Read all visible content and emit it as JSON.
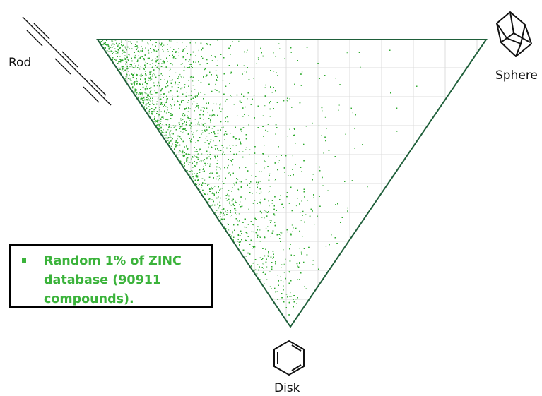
{
  "chart_data": {
    "type": "scatter",
    "plot_kind": "ternary principal-moments-of-inertia triangle",
    "vertices": [
      "Rod",
      "Sphere",
      "Disk"
    ],
    "series": [
      {
        "name": "Random 1% of ZINC database (90911 compounds).",
        "count": 90911,
        "color": "#2eaa2e"
      }
    ],
    "density_summary": "points concentrated near the Rod vertex along the Rod-Disk edge, thinning toward the Sphere vertex",
    "grid": true,
    "legend_position": "bottom-left"
  },
  "labels": {
    "rod": "Rod",
    "sphere": "Sphere",
    "disk": "Disk"
  },
  "legend": {
    "text": "Random 1% of ZINC database (90911 compounds).",
    "color": "#3bb33b"
  },
  "colors": {
    "triangle_edge": "#1f5f3a",
    "points": "#2eaa2e",
    "grid": "#dcdcdc"
  },
  "icons": {
    "rod": "rod-molecule-icon",
    "sphere": "adamantane-molecule-icon",
    "disk": "benzene-molecule-icon"
  }
}
